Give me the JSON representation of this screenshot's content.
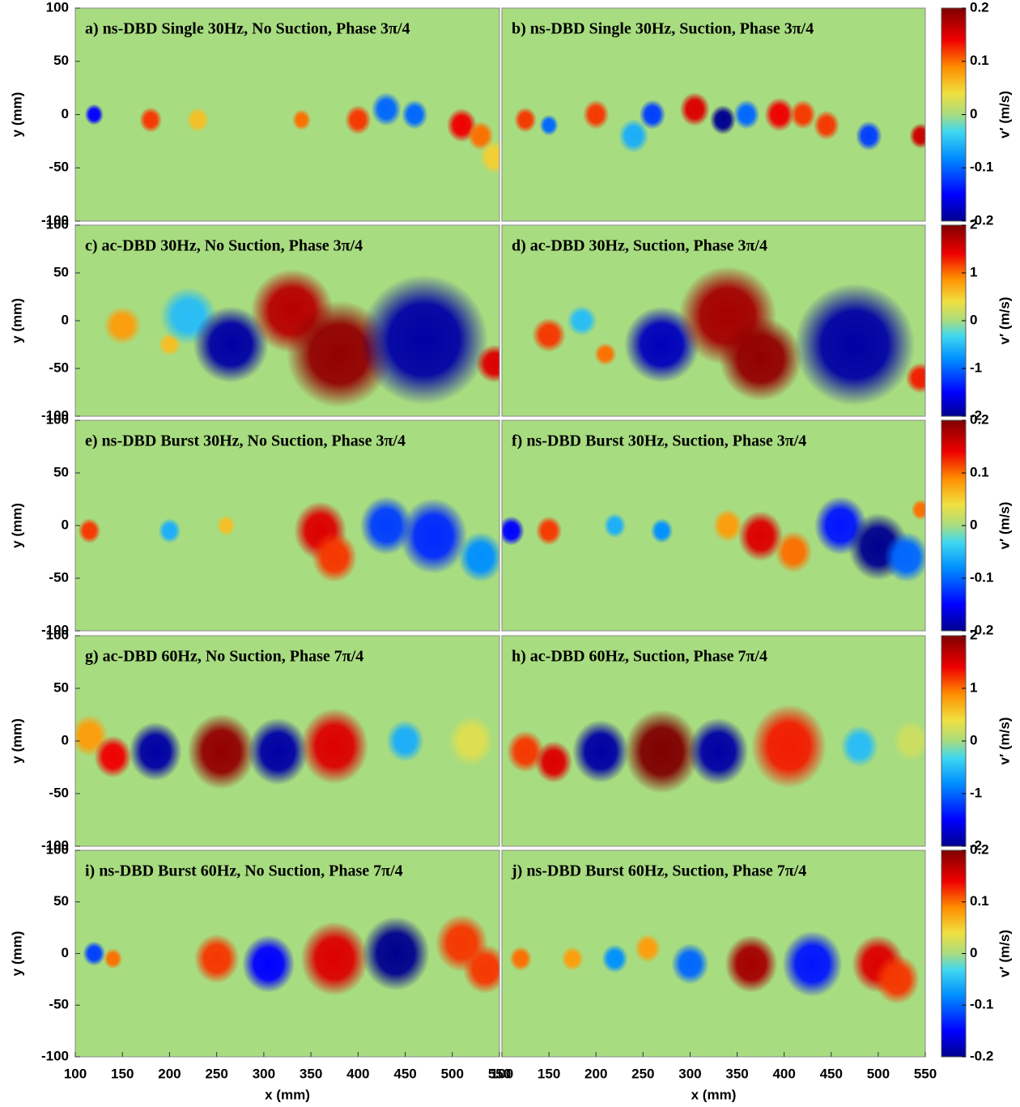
{
  "chart_data": [
    {
      "type": "contour",
      "title": "a) ns-DBD Single 30Hz, No Suction, Phase 3π/4",
      "xlim": [
        100,
        550
      ],
      "ylim": [
        -100,
        100
      ],
      "ylabel": "y (mm)",
      "yticks": [
        100,
        50,
        0,
        -50,
        -100
      ],
      "field": {
        "x": [
          120,
          180,
          230,
          340,
          400,
          430,
          460,
          510,
          530,
          545
        ],
        "y": [
          0,
          -5,
          -5,
          -5,
          -5,
          5,
          0,
          -10,
          -20,
          -40
        ],
        "values": [
          -0.15,
          0.12,
          0.06,
          0.1,
          0.12,
          -0.1,
          -0.1,
          0.14,
          0.1,
          0.05
        ],
        "sizes": [
          5,
          6,
          6,
          5,
          7,
          8,
          7,
          8,
          7,
          8
        ]
      }
    },
    {
      "type": "contour",
      "title": "b) ns-DBD Single 30Hz, Suction, Phase 3π/4",
      "xlim": [
        100,
        550
      ],
      "ylim": [
        -100,
        100
      ],
      "colorbar": {
        "label": "v′ (m/s)",
        "clim": [
          -0.2,
          0.2
        ],
        "ticks": [
          0.2,
          0.1,
          0,
          -0.1,
          -0.2
        ]
      },
      "field": {
        "x": [
          125,
          150,
          200,
          240,
          260,
          305,
          335,
          360,
          395,
          420,
          445,
          490,
          545
        ],
        "y": [
          -5,
          -10,
          0,
          -20,
          0,
          5,
          -5,
          0,
          0,
          0,
          -10,
          -20,
          -20
        ],
        "values": [
          0.12,
          -0.1,
          0.12,
          -0.06,
          -0.12,
          0.15,
          -0.2,
          -0.1,
          0.14,
          0.12,
          0.12,
          -0.12,
          0.16
        ],
        "sizes": [
          6,
          5,
          7,
          8,
          7,
          8,
          7,
          7,
          8,
          7,
          7,
          7,
          6
        ]
      }
    },
    {
      "type": "contour",
      "title": "c) ac-DBD 30Hz, No Suction, Phase 3π/4",
      "xlim": [
        100,
        550
      ],
      "ylim": [
        -100,
        100
      ],
      "ylabel": "y (mm)",
      "yticks": [
        100,
        50,
        0,
        -50,
        -100
      ],
      "field": {
        "x": [
          150,
          200,
          220,
          265,
          330,
          380,
          470,
          545
        ],
        "y": [
          -5,
          -25,
          5,
          -25,
          10,
          -35,
          -20,
          -45
        ],
        "values": [
          0.8,
          0.6,
          -0.5,
          -1.9,
          1.7,
          1.9,
          -1.9,
          1.5
        ],
        "sizes": [
          10,
          6,
          15,
          20,
          22,
          28,
          34,
          10
        ]
      }
    },
    {
      "type": "contour",
      "title": "d) ac-DBD 30Hz, Suction, Phase 3π/4",
      "xlim": [
        100,
        550
      ],
      "ylim": [
        -100,
        100
      ],
      "colorbar": {
        "label": "v′ (m/s)",
        "clim": [
          -2,
          2
        ],
        "ticks": [
          2,
          1,
          0,
          -1,
          -2
        ]
      },
      "field": {
        "x": [
          150,
          185,
          210,
          270,
          340,
          375,
          475,
          545
        ],
        "y": [
          -15,
          0,
          -35,
          -25,
          5,
          -40,
          -25,
          -60
        ],
        "values": [
          1.2,
          -0.5,
          1,
          -1.8,
          1.8,
          1.9,
          -1.9,
          1.3
        ],
        "sizes": [
          9,
          8,
          6,
          20,
          26,
          22,
          32,
          8
        ]
      }
    },
    {
      "type": "contour",
      "title": "e) ns-DBD Burst 30Hz, No Suction, Phase 3π/4",
      "xlim": [
        100,
        550
      ],
      "ylim": [
        -100,
        100
      ],
      "ylabel": "y (mm)",
      "yticks": [
        100,
        50,
        0,
        -50,
        -100
      ],
      "field": {
        "x": [
          115,
          200,
          260,
          360,
          375,
          430,
          480,
          530
        ],
        "y": [
          -5,
          -5,
          0,
          -5,
          -30,
          0,
          -10,
          -30
        ],
        "values": [
          0.12,
          -0.06,
          0.06,
          0.15,
          0.12,
          -0.12,
          -0.13,
          -0.08
        ],
        "sizes": [
          6,
          6,
          5,
          14,
          12,
          14,
          18,
          12
        ]
      }
    },
    {
      "type": "contour",
      "title": "f) ns-DBD Burst 30Hz, Suction, Phase 3π/4",
      "xlim": [
        100,
        550
      ],
      "ylim": [
        -100,
        100
      ],
      "colorbar": {
        "label": "v′ (m/s)",
        "clim": [
          -0.2,
          0.2
        ],
        "ticks": [
          0.2,
          0.1,
          0,
          -0.1,
          -0.2
        ]
      },
      "field": {
        "x": [
          110,
          150,
          220,
          270,
          340,
          375,
          410,
          460,
          500,
          530,
          545
        ],
        "y": [
          -5,
          -5,
          0,
          -5,
          0,
          -10,
          -25,
          0,
          -20,
          -30,
          15
        ],
        "values": [
          -0.15,
          0.12,
          -0.06,
          -0.08,
          0.08,
          0.15,
          0.1,
          -0.14,
          -0.2,
          -0.1,
          0.1
        ],
        "sizes": [
          7,
          7,
          6,
          6,
          8,
          12,
          10,
          14,
          16,
          12,
          5
        ]
      }
    },
    {
      "type": "contour",
      "title": "g) ac-DBD 60Hz, No Suction, Phase 7π/4",
      "xlim": [
        100,
        550
      ],
      "ylim": [
        -100,
        100
      ],
      "ylabel": "y (mm)",
      "yticks": [
        100,
        50,
        0,
        -50,
        -100
      ],
      "field": {
        "x": [
          115,
          140,
          185,
          255,
          315,
          375,
          450,
          520
        ],
        "y": [
          5,
          -15,
          -10,
          -10,
          -10,
          -5,
          0,
          0
        ],
        "values": [
          0.8,
          1.4,
          -1.9,
          1.9,
          -1.9,
          1.5,
          -0.6,
          0.3
        ],
        "sizes": [
          10,
          10,
          14,
          18,
          16,
          18,
          10,
          12
        ]
      }
    },
    {
      "type": "contour",
      "title": "h) ac-DBD 60Hz, Suction, Phase 7π/4",
      "xlim": [
        100,
        550
      ],
      "ylim": [
        -100,
        100
      ],
      "colorbar": {
        "label": "v′ (m/s)",
        "clim": [
          -2,
          2
        ],
        "ticks": [
          2,
          1,
          0,
          -1,
          -2
        ]
      },
      "field": {
        "x": [
          125,
          155,
          205,
          270,
          330,
          405,
          480,
          535
        ],
        "y": [
          -10,
          -20,
          -10,
          -10,
          -10,
          -5,
          -5,
          0
        ],
        "values": [
          1.2,
          1.5,
          -1.9,
          2,
          -1.9,
          1.3,
          -0.5,
          0.2
        ],
        "sizes": [
          10,
          10,
          15,
          20,
          16,
          20,
          10,
          10
        ]
      }
    },
    {
      "type": "contour",
      "title": "i) ns-DBD Burst 60Hz, No Suction, Phase 7π/4",
      "xlim": [
        100,
        550
      ],
      "ylim": [
        -100,
        100
      ],
      "ylabel": "y (mm)",
      "yticks": [
        100,
        50,
        0,
        -50,
        -100
      ],
      "xlabel": "x (mm)",
      "xticks": [
        100,
        150,
        200,
        250,
        300,
        350,
        400,
        450,
        500,
        550
      ],
      "field": {
        "x": [
          120,
          140,
          250,
          305,
          375,
          440,
          510,
          535
        ],
        "y": [
          0,
          -5,
          -5,
          -10,
          -5,
          0,
          10,
          -15
        ],
        "values": [
          -0.12,
          0.1,
          0.12,
          -0.15,
          0.15,
          -0.2,
          0.12,
          0.12
        ],
        "sizes": [
          6,
          5,
          12,
          14,
          18,
          18,
          14,
          12
        ]
      }
    },
    {
      "type": "contour",
      "title": "j) ns-DBD Burst 60Hz, Suction, Phase 7π/4",
      "xlim": [
        100,
        550
      ],
      "ylim": [
        -100,
        100
      ],
      "xlabel": "x (mm)",
      "xticks": [
        100,
        150,
        200,
        250,
        300,
        350,
        400,
        450,
        500,
        550
      ],
      "colorbar": {
        "label": "v′ (m/s)",
        "clim": [
          -0.2,
          0.2
        ],
        "ticks": [
          0.2,
          0.1,
          0,
          -0.1,
          -0.2
        ]
      },
      "field": {
        "x": [
          120,
          175,
          220,
          255,
          300,
          365,
          430,
          500,
          520
        ],
        "y": [
          -5,
          -5,
          -5,
          5,
          -10,
          -10,
          -10,
          -10,
          -25
        ],
        "values": [
          0.1,
          0.08,
          -0.08,
          0.08,
          -0.1,
          0.18,
          -0.14,
          0.15,
          0.12
        ],
        "sizes": [
          6,
          6,
          7,
          7,
          10,
          14,
          16,
          14,
          12
        ]
      }
    }
  ]
}
